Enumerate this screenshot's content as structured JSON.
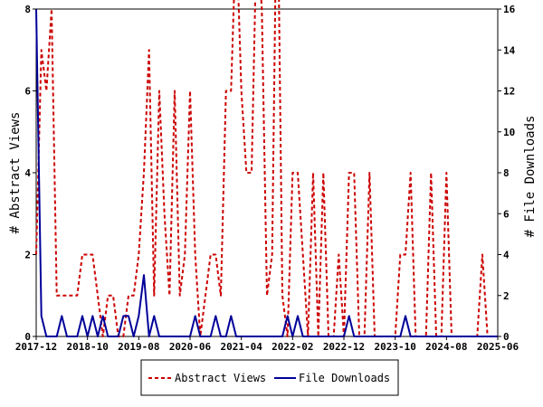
{
  "chart_data": {
    "type": "line",
    "title": "",
    "ylabel_left": "# Abstract Views",
    "ylabel_right": "# File Downloads",
    "ylim_left": [
      0,
      8
    ],
    "ylim_right": [
      0,
      16
    ],
    "yticks_left": [
      "0",
      "2",
      "4",
      "6",
      "8"
    ],
    "yticks_right": [
      "0",
      "2",
      "4",
      "6",
      "8",
      "10",
      "12",
      "14",
      "16"
    ],
    "xlim": [
      "2017-12",
      "2025-06"
    ],
    "xticks": [
      "2017-12",
      "2018-10",
      "2019-08",
      "2020-06",
      "2021-04",
      "2022-02",
      "2022-12",
      "2023-10",
      "2024-08",
      "2025-06"
    ],
    "grid": false,
    "legend_position": "bottom",
    "series": [
      {
        "name": "Abstract Views",
        "axis": "left",
        "color": "#cc0000",
        "style": "dashed",
        "x": [
          "2017-12",
          "2018-01",
          "2018-02",
          "2018-03",
          "2018-04",
          "2018-05",
          "2018-06",
          "2018-07",
          "2018-08",
          "2018-09",
          "2018-10",
          "2018-11",
          "2018-12",
          "2019-01",
          "2019-02",
          "2019-03",
          "2019-04",
          "2019-05",
          "2019-06",
          "2019-07",
          "2019-08",
          "2019-09",
          "2019-10",
          "2019-11",
          "2019-12",
          "2020-01",
          "2020-02",
          "2020-03",
          "2020-04",
          "2020-05",
          "2020-06",
          "2020-07",
          "2020-08",
          "2020-09",
          "2020-10",
          "2020-11",
          "2020-12",
          "2021-01",
          "2021-02",
          "2021-03",
          "2021-04",
          "2021-05",
          "2021-06",
          "2021-07",
          "2021-08",
          "2021-09",
          "2021-10",
          "2021-11",
          "2021-12",
          "2022-01",
          "2022-02",
          "2022-03",
          "2022-04",
          "2022-05",
          "2022-06",
          "2022-07",
          "2022-08",
          "2022-09",
          "2022-10",
          "2022-11",
          "2022-12",
          "2023-01",
          "2023-02",
          "2023-03",
          "2023-04",
          "2023-05",
          "2023-06",
          "2023-07",
          "2023-08",
          "2023-09",
          "2023-10",
          "2023-11",
          "2023-12",
          "2024-01",
          "2024-02",
          "2024-03",
          "2024-04",
          "2024-05",
          "2024-06",
          "2024-07",
          "2024-08",
          "2024-09",
          "2024-10",
          "2024-11",
          "2024-12",
          "2025-01",
          "2025-02",
          "2025-03",
          "2025-04",
          "2025-05",
          "2025-06"
        ],
        "values": [
          2,
          7,
          6,
          8,
          1,
          1,
          1,
          1,
          1,
          2,
          2,
          2,
          1,
          0,
          1,
          1,
          0,
          0,
          1,
          1,
          2,
          4,
          7,
          1,
          6,
          3,
          1,
          6,
          1,
          2,
          6,
          2,
          0,
          1,
          2,
          2,
          1,
          6,
          6,
          10,
          6,
          4,
          4,
          10,
          8,
          1,
          2,
          12,
          1,
          0,
          4,
          4,
          2,
          0,
          4,
          0,
          4,
          0,
          0,
          2,
          0,
          4,
          4,
          0,
          0,
          4,
          0,
          0,
          0,
          0,
          0,
          2,
          2,
          4,
          0,
          0,
          0,
          4,
          0,
          0,
          4,
          0,
          0,
          0,
          0,
          0,
          0,
          2,
          0,
          0,
          0
        ]
      },
      {
        "name": "File Downloads",
        "axis": "right",
        "color": "#000099",
        "style": "solid",
        "x": [
          "2017-12",
          "2018-01",
          "2018-02",
          "2018-03",
          "2018-04",
          "2018-05",
          "2018-06",
          "2018-07",
          "2018-08",
          "2018-09",
          "2018-10",
          "2018-11",
          "2018-12",
          "2019-01",
          "2019-02",
          "2019-03",
          "2019-04",
          "2019-05",
          "2019-06",
          "2019-07",
          "2019-08",
          "2019-09",
          "2019-10",
          "2019-11",
          "2019-12",
          "2020-01",
          "2020-02",
          "2020-03",
          "2020-04",
          "2020-05",
          "2020-06",
          "2020-07",
          "2020-08",
          "2020-09",
          "2020-10",
          "2020-11",
          "2020-12",
          "2021-01",
          "2021-02",
          "2021-03",
          "2021-04",
          "2021-05",
          "2021-06",
          "2021-07",
          "2021-08",
          "2021-09",
          "2021-10",
          "2021-11",
          "2021-12",
          "2022-01",
          "2022-02",
          "2022-03",
          "2022-04",
          "2022-05",
          "2022-06",
          "2022-07",
          "2022-08",
          "2022-09",
          "2022-10",
          "2022-11",
          "2022-12",
          "2023-01",
          "2023-02",
          "2023-03",
          "2023-04",
          "2023-05",
          "2023-06",
          "2023-07",
          "2023-08",
          "2023-09",
          "2023-10",
          "2023-11",
          "2023-12",
          "2024-01",
          "2024-02",
          "2024-03",
          "2024-04",
          "2024-05",
          "2024-06",
          "2024-07",
          "2024-08",
          "2024-09",
          "2024-10",
          "2024-11",
          "2024-12",
          "2025-01",
          "2025-02",
          "2025-03",
          "2025-04",
          "2025-05",
          "2025-06"
        ],
        "values": [
          16,
          1,
          0,
          0,
          0,
          1,
          0,
          0,
          0,
          1,
          0,
          1,
          0,
          1,
          0,
          0,
          0,
          1,
          1,
          0,
          1,
          3,
          0,
          1,
          0,
          0,
          0,
          0,
          0,
          0,
          0,
          1,
          0,
          0,
          0,
          1,
          0,
          0,
          1,
          0,
          0,
          0,
          0,
          0,
          0,
          0,
          0,
          0,
          0,
          1,
          0,
          1,
          0,
          0,
          0,
          0,
          0,
          0,
          0,
          0,
          0,
          1,
          0,
          0,
          0,
          0,
          0,
          0,
          0,
          0,
          0,
          0,
          1,
          0,
          0,
          0,
          0,
          0,
          0,
          0,
          0,
          0,
          0,
          0,
          0,
          0,
          0,
          0,
          0,
          0,
          0
        ]
      }
    ]
  }
}
